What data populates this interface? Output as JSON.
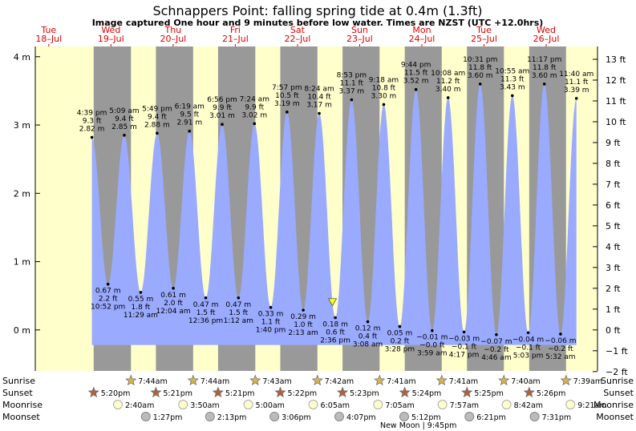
{
  "title": "Schnappers Point: falling  spring tide at 0.4m (1.3ft)",
  "subtitle": "Image captured One hour and 9 minutes before low water. Times are NZST (UTC +12.0hrs)",
  "colors": {
    "night": "#999999",
    "day": "#ffffcc",
    "tide": "#99aaff",
    "day_label": "#dd0000"
  },
  "days": [
    {
      "name": "Tue",
      "date": "18–Jul",
      "t": 0
    },
    {
      "name": "Wed",
      "date": "19–Jul",
      "t": 24
    },
    {
      "name": "Thu",
      "date": "20–Jul",
      "t": 48
    },
    {
      "name": "Fri",
      "date": "21–Jul",
      "t": 72
    },
    {
      "name": "Sat",
      "date": "22–Jul",
      "t": 96
    },
    {
      "name": "Sun",
      "date": "23–Jul",
      "t": 120
    },
    {
      "name": "Mon",
      "date": "24–Jul",
      "t": 144
    },
    {
      "name": "Tue",
      "date": "25–Jul",
      "t": 168
    },
    {
      "name": "Wed",
      "date": "26–Jul",
      "t": 192
    }
  ],
  "chart_data": {
    "type": "area",
    "title": "Schnappers Point: falling  spring tide at 0.4m (1.3ft)",
    "xlim_hours": [
      -5.2,
      211.8
    ],
    "ylim_m": [
      -0.6,
      4.15
    ],
    "left_ticks": [
      "4 m",
      "3 m",
      "2 m",
      "1 m",
      "0 m"
    ],
    "right_ticks": [
      "13 ft",
      "12 ft",
      "11 ft",
      "10 ft",
      "9 ft",
      "8 ft",
      "7 ft",
      "6 ft",
      "5 ft",
      "4 ft",
      "3 ft",
      "2 ft",
      "1 ft",
      "0 ft",
      "−1 ft",
      "−2 ft"
    ],
    "tides": [
      {
        "t": 16.65,
        "h": 2.82,
        "type": "high",
        "time": "4:39 pm",
        "ft": "9.3 ft",
        "m": "2.82 m"
      },
      {
        "t": 22.87,
        "h": 0.67,
        "type": "low",
        "time": "10:52 pm",
        "ft": "2.2 ft",
        "m": "0.67 m"
      },
      {
        "t": 29.15,
        "h": 2.85,
        "type": "high",
        "time": "5:09 am",
        "ft": "9.4 ft",
        "m": "2.85 m"
      },
      {
        "t": 35.48,
        "h": 0.55,
        "type": "low",
        "time": "11:29 am",
        "ft": "1.8 ft",
        "m": "0.55 m"
      },
      {
        "t": 41.82,
        "h": 2.88,
        "type": "high",
        "time": "5:49 pm",
        "ft": "9.4 ft",
        "m": "2.88 m"
      },
      {
        "t": 48.07,
        "h": 0.61,
        "type": "low",
        "time": "12:04 am",
        "ft": "2.0 ft",
        "m": "0.61 m"
      },
      {
        "t": 54.32,
        "h": 2.91,
        "type": "high",
        "time": "6:19 am",
        "ft": "9.5 ft",
        "m": "2.91 m"
      },
      {
        "t": 60.6,
        "h": 0.47,
        "type": "low",
        "time": "12:36 pm",
        "ft": "1.5 ft",
        "m": "0.47 m"
      },
      {
        "t": 66.93,
        "h": 3.01,
        "type": "high",
        "time": "6:56 pm",
        "ft": "9.9 ft",
        "m": "3.01 m"
      },
      {
        "t": 73.2,
        "h": 0.47,
        "type": "low",
        "time": "1:12 am",
        "ft": "1.5 ft",
        "m": "0.47 m"
      },
      {
        "t": 79.4,
        "h": 3.02,
        "type": "high",
        "time": "7:24 am",
        "ft": "9.9 ft",
        "m": "3.02 m"
      },
      {
        "t": 85.67,
        "h": 0.33,
        "type": "low",
        "time": "1:40 pm",
        "ft": "1.1 ft",
        "m": "0.33 m"
      },
      {
        "t": 91.95,
        "h": 3.19,
        "type": "high",
        "time": "7:57 pm",
        "ft": "10.5 ft",
        "m": "3.19 m"
      },
      {
        "t": 98.22,
        "h": 0.29,
        "type": "low",
        "time": "2:13 am",
        "ft": "1.0 ft",
        "m": "0.29 m"
      },
      {
        "t": 104.4,
        "h": 3.17,
        "type": "high",
        "time": "8:24 am",
        "ft": "10.4 ft",
        "m": "3.17 m"
      },
      {
        "t": 110.6,
        "h": 0.18,
        "type": "low",
        "time": "2:36 pm",
        "ft": "0.6 ft",
        "m": "0.18 m"
      },
      {
        "t": 116.88,
        "h": 3.37,
        "type": "high",
        "time": "8:53 pm",
        "ft": "11.1 ft",
        "m": "3.37 m"
      },
      {
        "t": 123.13,
        "h": 0.12,
        "type": "low",
        "time": "3:08 am",
        "ft": "0.4 ft",
        "m": "0.12 m"
      },
      {
        "t": 129.3,
        "h": 3.3,
        "type": "high",
        "time": "9:18 am",
        "ft": "10.8 ft",
        "m": "3.30 m"
      },
      {
        "t": 135.47,
        "h": 0.05,
        "type": "low",
        "time": "3:28 pm",
        "ft": "0.2 ft",
        "m": "0.05 m"
      },
      {
        "t": 141.73,
        "h": 3.52,
        "type": "high",
        "time": "9:44 pm",
        "ft": "11.5 ft",
        "m": "3.52 m"
      },
      {
        "t": 147.98,
        "h": -0.01,
        "type": "low",
        "time": "3:59 am",
        "ft": "−0.0 ft",
        "m": "−0.01 m"
      },
      {
        "t": 154.13,
        "h": 3.4,
        "type": "high",
        "time": "10:08 am",
        "ft": "11.2 ft",
        "m": "3.40 m"
      },
      {
        "t": 160.28,
        "h": -0.03,
        "type": "low",
        "time": "4:17 pm",
        "ft": "−0.1 ft",
        "m": "−0.03 m"
      },
      {
        "t": 166.52,
        "h": 3.6,
        "type": "high",
        "time": "10:31 pm",
        "ft": "11.8 ft",
        "m": "3.60 m"
      },
      {
        "t": 172.77,
        "h": -0.07,
        "type": "low",
        "time": "4:46 am",
        "ft": "−0.2 ft",
        "m": "−0.07 m"
      },
      {
        "t": 178.92,
        "h": 3.43,
        "type": "high",
        "time": "10:55 am",
        "ft": "11.3 ft",
        "m": "3.43 m"
      },
      {
        "t": 185.05,
        "h": -0.04,
        "type": "low",
        "time": "5:03 pm",
        "ft": "−0.1 ft",
        "m": "−0.04 m"
      },
      {
        "t": 191.28,
        "h": 3.6,
        "type": "high",
        "time": "11:17 pm",
        "ft": "11.8 ft",
        "m": "3.60 m"
      },
      {
        "t": 197.53,
        "h": -0.06,
        "type": "low",
        "time": "5:32 am",
        "ft": "−0.2 ft",
        "m": "−0.06 m"
      },
      {
        "t": 203.67,
        "h": 3.39,
        "type": "high",
        "time": "11:40 am",
        "ft": "11.1 ft",
        "m": "3.39 m"
      }
    ],
    "current": {
      "t": 109.5,
      "h": 0.4
    }
  },
  "rows": {
    "sunrise": "Sunrise",
    "sunset": "Sunset",
    "moonrise": "Moonrise",
    "moonset": "Moonset"
  },
  "sunrise": [
    {
      "t": 31.73,
      "label": "7:44am"
    },
    {
      "t": 55.73,
      "label": "7:44am"
    },
    {
      "t": 79.72,
      "label": "7:43am"
    },
    {
      "t": 103.7,
      "label": "7:42am"
    },
    {
      "t": 127.68,
      "label": "7:41am"
    },
    {
      "t": 151.68,
      "label": "7:41am"
    },
    {
      "t": 175.67,
      "label": "7:40am"
    },
    {
      "t": 199.65,
      "label": "7:39am"
    }
  ],
  "sunset": [
    {
      "t": 17.33,
      "label": "5:20pm"
    },
    {
      "t": 41.35,
      "label": "5:21pm"
    },
    {
      "t": 65.35,
      "label": "5:21pm"
    },
    {
      "t": 89.37,
      "label": "5:22pm"
    },
    {
      "t": 113.38,
      "label": "5:23pm"
    },
    {
      "t": 137.4,
      "label": "5:24pm"
    },
    {
      "t": 161.42,
      "label": "5:25pm"
    },
    {
      "t": 185.43,
      "label": "5:26pm"
    }
  ],
  "moonrise": [
    {
      "t": 26.67,
      "label": "2:40am"
    },
    {
      "t": 51.83,
      "label": "3:50am"
    },
    {
      "t": 77.0,
      "label": "5:00am"
    },
    {
      "t": 102.08,
      "label": "6:05am"
    },
    {
      "t": 127.08,
      "label": "7:05am"
    },
    {
      "t": 151.95,
      "label": "7:57am"
    },
    {
      "t": 176.7,
      "label": "8:42am"
    },
    {
      "t": 201.35,
      "label": "9:21am"
    }
  ],
  "moonset": [
    {
      "t": 37.45,
      "label": "1:27pm"
    },
    {
      "t": 62.22,
      "label": "2:13pm"
    },
    {
      "t": 87.1,
      "label": "3:06pm"
    },
    {
      "t": 112.12,
      "label": "4:07pm"
    },
    {
      "t": 137.2,
      "label": "5:12pm"
    },
    {
      "t": 162.35,
      "label": "6:21pm"
    },
    {
      "t": 187.52,
      "label": "7:31pm"
    }
  ],
  "new_moon": {
    "t": 141.75,
    "label": "New Moon | 9:45pm"
  }
}
